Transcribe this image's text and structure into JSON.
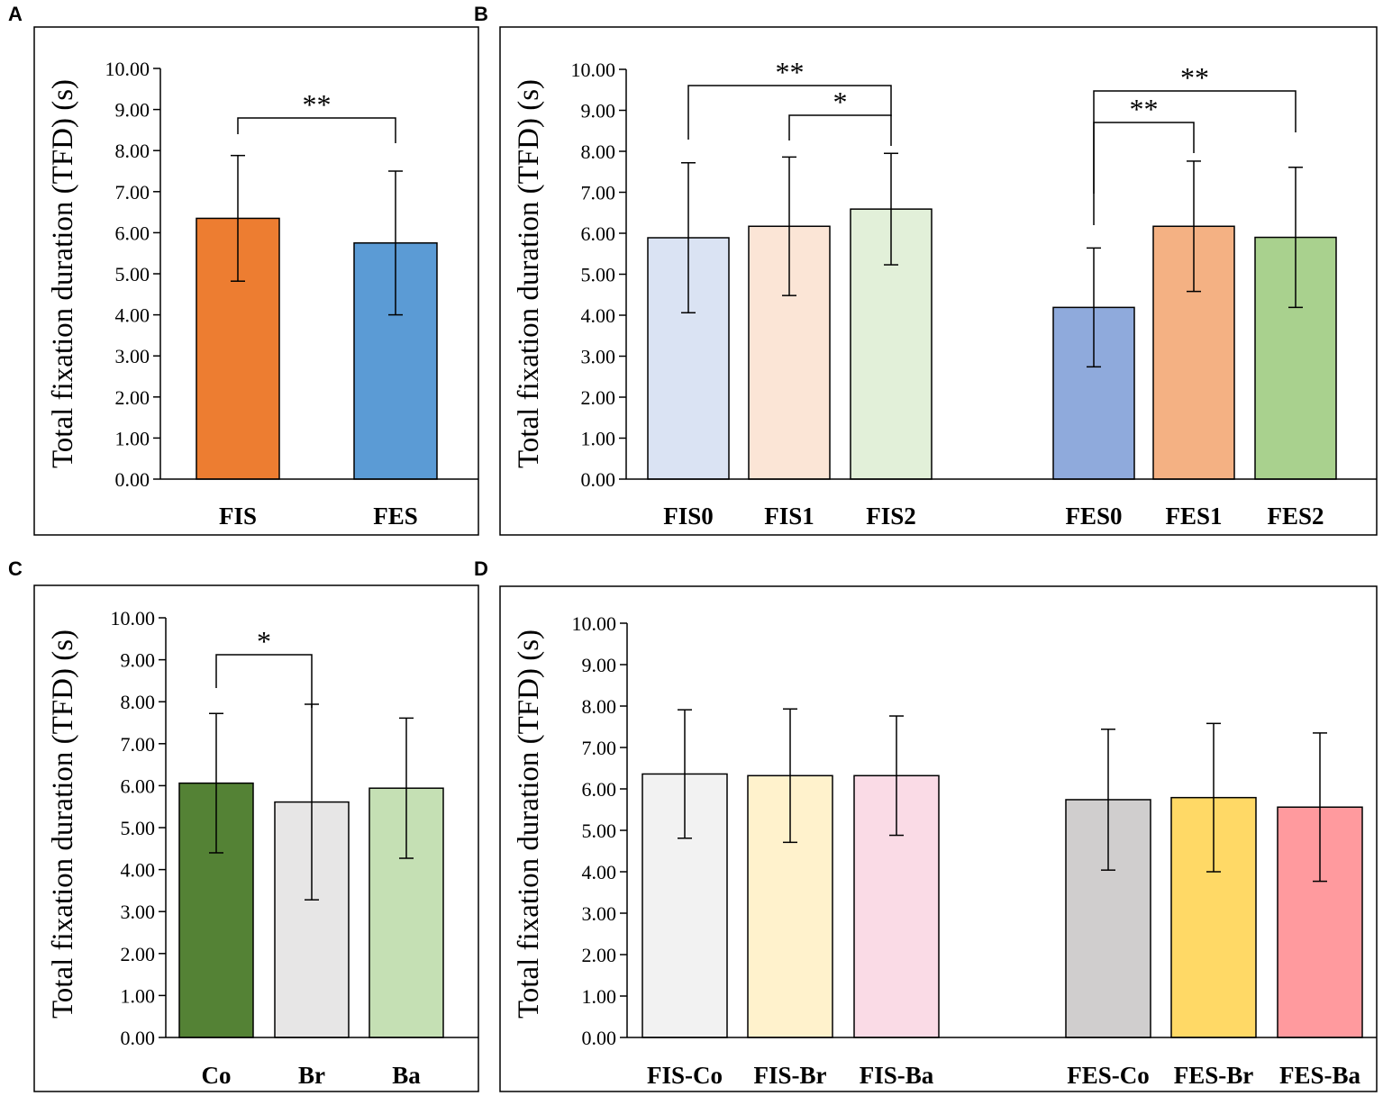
{
  "chart_data": [
    {
      "panel": "A",
      "type": "bar",
      "ylabel": "Total fixation duration (TFD) (s)",
      "ylim": [
        0,
        10
      ],
      "yticks": [
        "0.00",
        "1.00",
        "2.00",
        "3.00",
        "4.00",
        "5.00",
        "6.00",
        "7.00",
        "8.00",
        "9.00",
        "10.00"
      ],
      "categories": [
        "FIS",
        "FES"
      ],
      "values": [
        6.35,
        5.75
      ],
      "errors": [
        1.53,
        1.75
      ],
      "colors": [
        "#ED7D31",
        "#5B9BD5"
      ],
      "significance": [
        {
          "from": 0,
          "to": 1,
          "label": "**"
        }
      ]
    },
    {
      "panel": "B",
      "type": "bar",
      "ylabel": "Total fixation duration (TFD) (s)",
      "ylim": [
        0,
        10
      ],
      "yticks": [
        "0.00",
        "1.00",
        "2.00",
        "3.00",
        "4.00",
        "5.00",
        "6.00",
        "7.00",
        "8.00",
        "9.00",
        "10.00"
      ],
      "categories": [
        "FIS0",
        "FIS1",
        "FIS2",
        "FES0",
        "FES1",
        "FES2"
      ],
      "values": [
        5.89,
        6.17,
        6.59,
        4.19,
        6.17,
        5.9
      ],
      "errors": [
        1.83,
        1.69,
        1.36,
        1.45,
        1.59,
        1.71
      ],
      "colors": [
        "#DAE3F3",
        "#FBE5D6",
        "#E2F0D9",
        "#8FAADC",
        "#F4B183",
        "#A9D18E"
      ],
      "significance": [
        {
          "from": 0,
          "to": 2,
          "label": "**"
        },
        {
          "from": 1,
          "to": 2,
          "label": "*"
        },
        {
          "from": 3,
          "to": 4,
          "label": "**"
        },
        {
          "from": 3,
          "to": 5,
          "label": "**"
        }
      ]
    },
    {
      "panel": "C",
      "type": "bar",
      "ylabel": "Total fixation duration (TFD) (s)",
      "ylim": [
        0,
        10
      ],
      "yticks": [
        "0.00",
        "1.00",
        "2.00",
        "3.00",
        "4.00",
        "5.00",
        "6.00",
        "7.00",
        "8.00",
        "9.00",
        "10.00"
      ],
      "categories": [
        "Co",
        "Br",
        "Ba"
      ],
      "values": [
        6.06,
        5.61,
        5.94
      ],
      "errors": [
        1.66,
        2.33,
        1.67
      ],
      "colors": [
        "#548235",
        "#E7E6E6",
        "#C5E0B4"
      ],
      "significance": [
        {
          "from": 0,
          "to": 1,
          "label": "*"
        }
      ]
    },
    {
      "panel": "D",
      "type": "bar",
      "ylabel": "Total fixation duration (TFD) (s)",
      "ylim": [
        0,
        10
      ],
      "yticks": [
        "0.00",
        "1.00",
        "2.00",
        "3.00",
        "4.00",
        "5.00",
        "6.00",
        "7.00",
        "8.00",
        "9.00",
        "10.00"
      ],
      "categories": [
        "FIS-Co",
        "FIS-Br",
        "FIS-Ba",
        "FES-Co",
        "FES-Br",
        "FES-Ba"
      ],
      "values": [
        6.36,
        6.32,
        6.32,
        5.74,
        5.79,
        5.56
      ],
      "errors": [
        1.55,
        1.61,
        1.44,
        1.7,
        1.79,
        1.79
      ],
      "colors": [
        "#F2F2F2",
        "#FFF2CC",
        "#FADBE6",
        "#D0CECE",
        "#FFD966",
        "#FF9A9E"
      ],
      "significance": []
    }
  ]
}
